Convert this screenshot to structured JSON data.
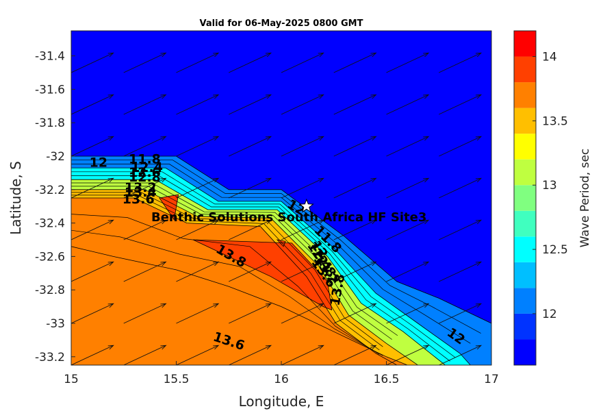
{
  "chart_data": {
    "type": "contour",
    "title": "Valid for 06-May-2025 0800 GMT",
    "xlabel": "Longitude, E",
    "ylabel": "Latitude, S",
    "xlim": [
      15,
      17
    ],
    "ylim": [
      -33.25,
      -31.25
    ],
    "xticks": [
      "15",
      "15.5",
      "16",
      "16.5",
      "17"
    ],
    "yticks": [
      "-31.4",
      "-31.6",
      "-31.8",
      "-32",
      "-32.2",
      "-32.4",
      "-32.6",
      "-32.8",
      "-33",
      "-33.2"
    ],
    "colorbar": {
      "label": "Wave Period, sec",
      "range": [
        11.6,
        14.2
      ],
      "ticks": [
        "12",
        "12.5",
        "13",
        "13.5",
        "14"
      ],
      "levels": [
        11.6,
        11.8,
        12.0,
        12.2,
        12.4,
        12.6,
        12.8,
        13.0,
        13.2,
        13.4,
        13.6,
        13.8,
        14.0,
        14.2
      ],
      "colors": [
        "#0000ff",
        "#0033ff",
        "#0080ff",
        "#00bfff",
        "#00ffff",
        "#40ffbf",
        "#80ff80",
        "#bfff40",
        "#ffff00",
        "#ffbf00",
        "#ff8000",
        "#ff4000",
        "#ff0000"
      ]
    },
    "regions": [
      {
        "level": 11.6,
        "points": [
          [
            15,
            -31.25
          ],
          [
            17,
            -31.25
          ],
          [
            17,
            -33.25
          ],
          [
            15,
            -33.25
          ]
        ]
      },
      {
        "level": 12.0,
        "points": [
          [
            15,
            -32.0
          ],
          [
            15.5,
            -32.0
          ],
          [
            15.75,
            -32.2
          ],
          [
            16.0,
            -32.2
          ],
          [
            16.3,
            -32.48
          ],
          [
            16.55,
            -32.75
          ],
          [
            16.75,
            -32.85
          ],
          [
            17,
            -33.0
          ],
          [
            17,
            -33.25
          ],
          [
            15,
            -33.25
          ]
        ]
      },
      {
        "level": 12.4,
        "points": [
          [
            15,
            -32.07
          ],
          [
            15.45,
            -32.07
          ],
          [
            15.7,
            -32.27
          ],
          [
            16.0,
            -32.27
          ],
          [
            16.25,
            -32.55
          ],
          [
            16.45,
            -32.82
          ],
          [
            16.65,
            -33.0
          ],
          [
            16.85,
            -33.18
          ],
          [
            16.9,
            -33.25
          ],
          [
            15,
            -33.25
          ]
        ]
      },
      {
        "level": 13.0,
        "points": [
          [
            15,
            -32.14
          ],
          [
            15.4,
            -32.14
          ],
          [
            15.65,
            -32.32
          ],
          [
            15.98,
            -32.32
          ],
          [
            16.22,
            -32.6
          ],
          [
            16.38,
            -32.88
          ],
          [
            16.58,
            -33.05
          ],
          [
            16.78,
            -33.25
          ],
          [
            15,
            -33.25
          ]
        ]
      },
      {
        "level": 13.4,
        "points": [
          [
            15,
            -32.2
          ],
          [
            15.35,
            -32.2
          ],
          [
            15.6,
            -32.36
          ],
          [
            15.95,
            -32.37
          ],
          [
            16.18,
            -32.66
          ],
          [
            16.32,
            -32.95
          ],
          [
            16.5,
            -33.12
          ],
          [
            16.65,
            -33.25
          ],
          [
            15,
            -33.25
          ]
        ]
      },
      {
        "level": 13.6,
        "points": [
          [
            15,
            -32.25
          ],
          [
            15.3,
            -32.25
          ],
          [
            15.55,
            -32.4
          ],
          [
            15.9,
            -32.42
          ],
          [
            16.12,
            -32.72
          ],
          [
            16.26,
            -33.0
          ],
          [
            16.45,
            -33.18
          ],
          [
            16.55,
            -33.25
          ],
          [
            15,
            -33.25
          ]
        ]
      },
      {
        "level": 13.8,
        "points": [
          [
            15.42,
            -32.25
          ],
          [
            15.51,
            -32.23
          ],
          [
            15.49,
            -32.38
          ]
        ]
      },
      {
        "level": 13.8,
        "points": [
          [
            15.58,
            -32.5
          ],
          [
            16.05,
            -32.52
          ],
          [
            16.22,
            -32.75
          ],
          [
            16.24,
            -32.92
          ],
          [
            16.2,
            -32.9
          ],
          [
            15.95,
            -32.72
          ]
        ]
      },
      {
        "level": 13.8,
        "points": [
          [
            15.98,
            -32.5
          ],
          [
            16.02,
            -32.51
          ],
          [
            16.01,
            -32.54
          ]
        ]
      },
      {
        "level": 13.6,
        "points": [
          [
            15,
            -32.54
          ],
          [
            15.2,
            -32.6
          ],
          [
            15.5,
            -32.68
          ],
          [
            15.75,
            -32.78
          ],
          [
            16.0,
            -32.9
          ],
          [
            16.25,
            -33.05
          ],
          [
            16.5,
            -33.2
          ],
          [
            16.6,
            -33.25
          ],
          [
            15,
            -33.25
          ]
        ]
      }
    ],
    "contour_labels": [
      {
        "text": "12",
        "x": 15.13,
        "y": -32.04,
        "rot": 0
      },
      {
        "text": "11.8",
        "x": 15.35,
        "y": -32.02,
        "rot": 0
      },
      {
        "text": "12.4",
        "x": 15.36,
        "y": -32.07,
        "rot": 0
      },
      {
        "text": "12.6",
        "x": 15.35,
        "y": -32.1,
        "rot": 0
      },
      {
        "text": "12.8",
        "x": 15.35,
        "y": -32.13,
        "rot": 0
      },
      {
        "text": "13.2",
        "x": 15.33,
        "y": -32.19,
        "rot": 0
      },
      {
        "text": "13.4",
        "x": 15.33,
        "y": -32.22,
        "rot": 0
      },
      {
        "text": "13.6",
        "x": 15.32,
        "y": -32.26,
        "rot": 0
      },
      {
        "text": "12",
        "x": 16.07,
        "y": -32.31,
        "rot": 30
      },
      {
        "text": "11.8",
        "x": 16.22,
        "y": -32.5,
        "rot": 45
      },
      {
        "text": "12",
        "x": 16.18,
        "y": -32.56,
        "rot": 55
      },
      {
        "text": "12.4",
        "x": 16.18,
        "y": -32.6,
        "rot": 55
      },
      {
        "text": "12.8",
        "x": 16.2,
        "y": -32.64,
        "rot": 55
      },
      {
        "text": "13.2",
        "x": 16.21,
        "y": -32.68,
        "rot": 55
      },
      {
        "text": "13.6",
        "x": 16.2,
        "y": -32.7,
        "rot": 55
      },
      {
        "text": "13.8",
        "x": 15.76,
        "y": -32.6,
        "rot": 30
      },
      {
        "text": "13.8",
        "x": 16.27,
        "y": -32.8,
        "rot": -80
      },
      {
        "text": "13.6",
        "x": 15.75,
        "y": -33.11,
        "rot": 18
      },
      {
        "text": "12",
        "x": 16.83,
        "y": -33.08,
        "rot": 35
      }
    ],
    "site": {
      "name": "Benthic Solutions South Africa HF Site3",
      "x": 16.12,
      "y": -32.3
    },
    "vectors": {
      "x_spacing": 0.25,
      "y_spacing": 0.25,
      "direction_deg": 25
    }
  }
}
